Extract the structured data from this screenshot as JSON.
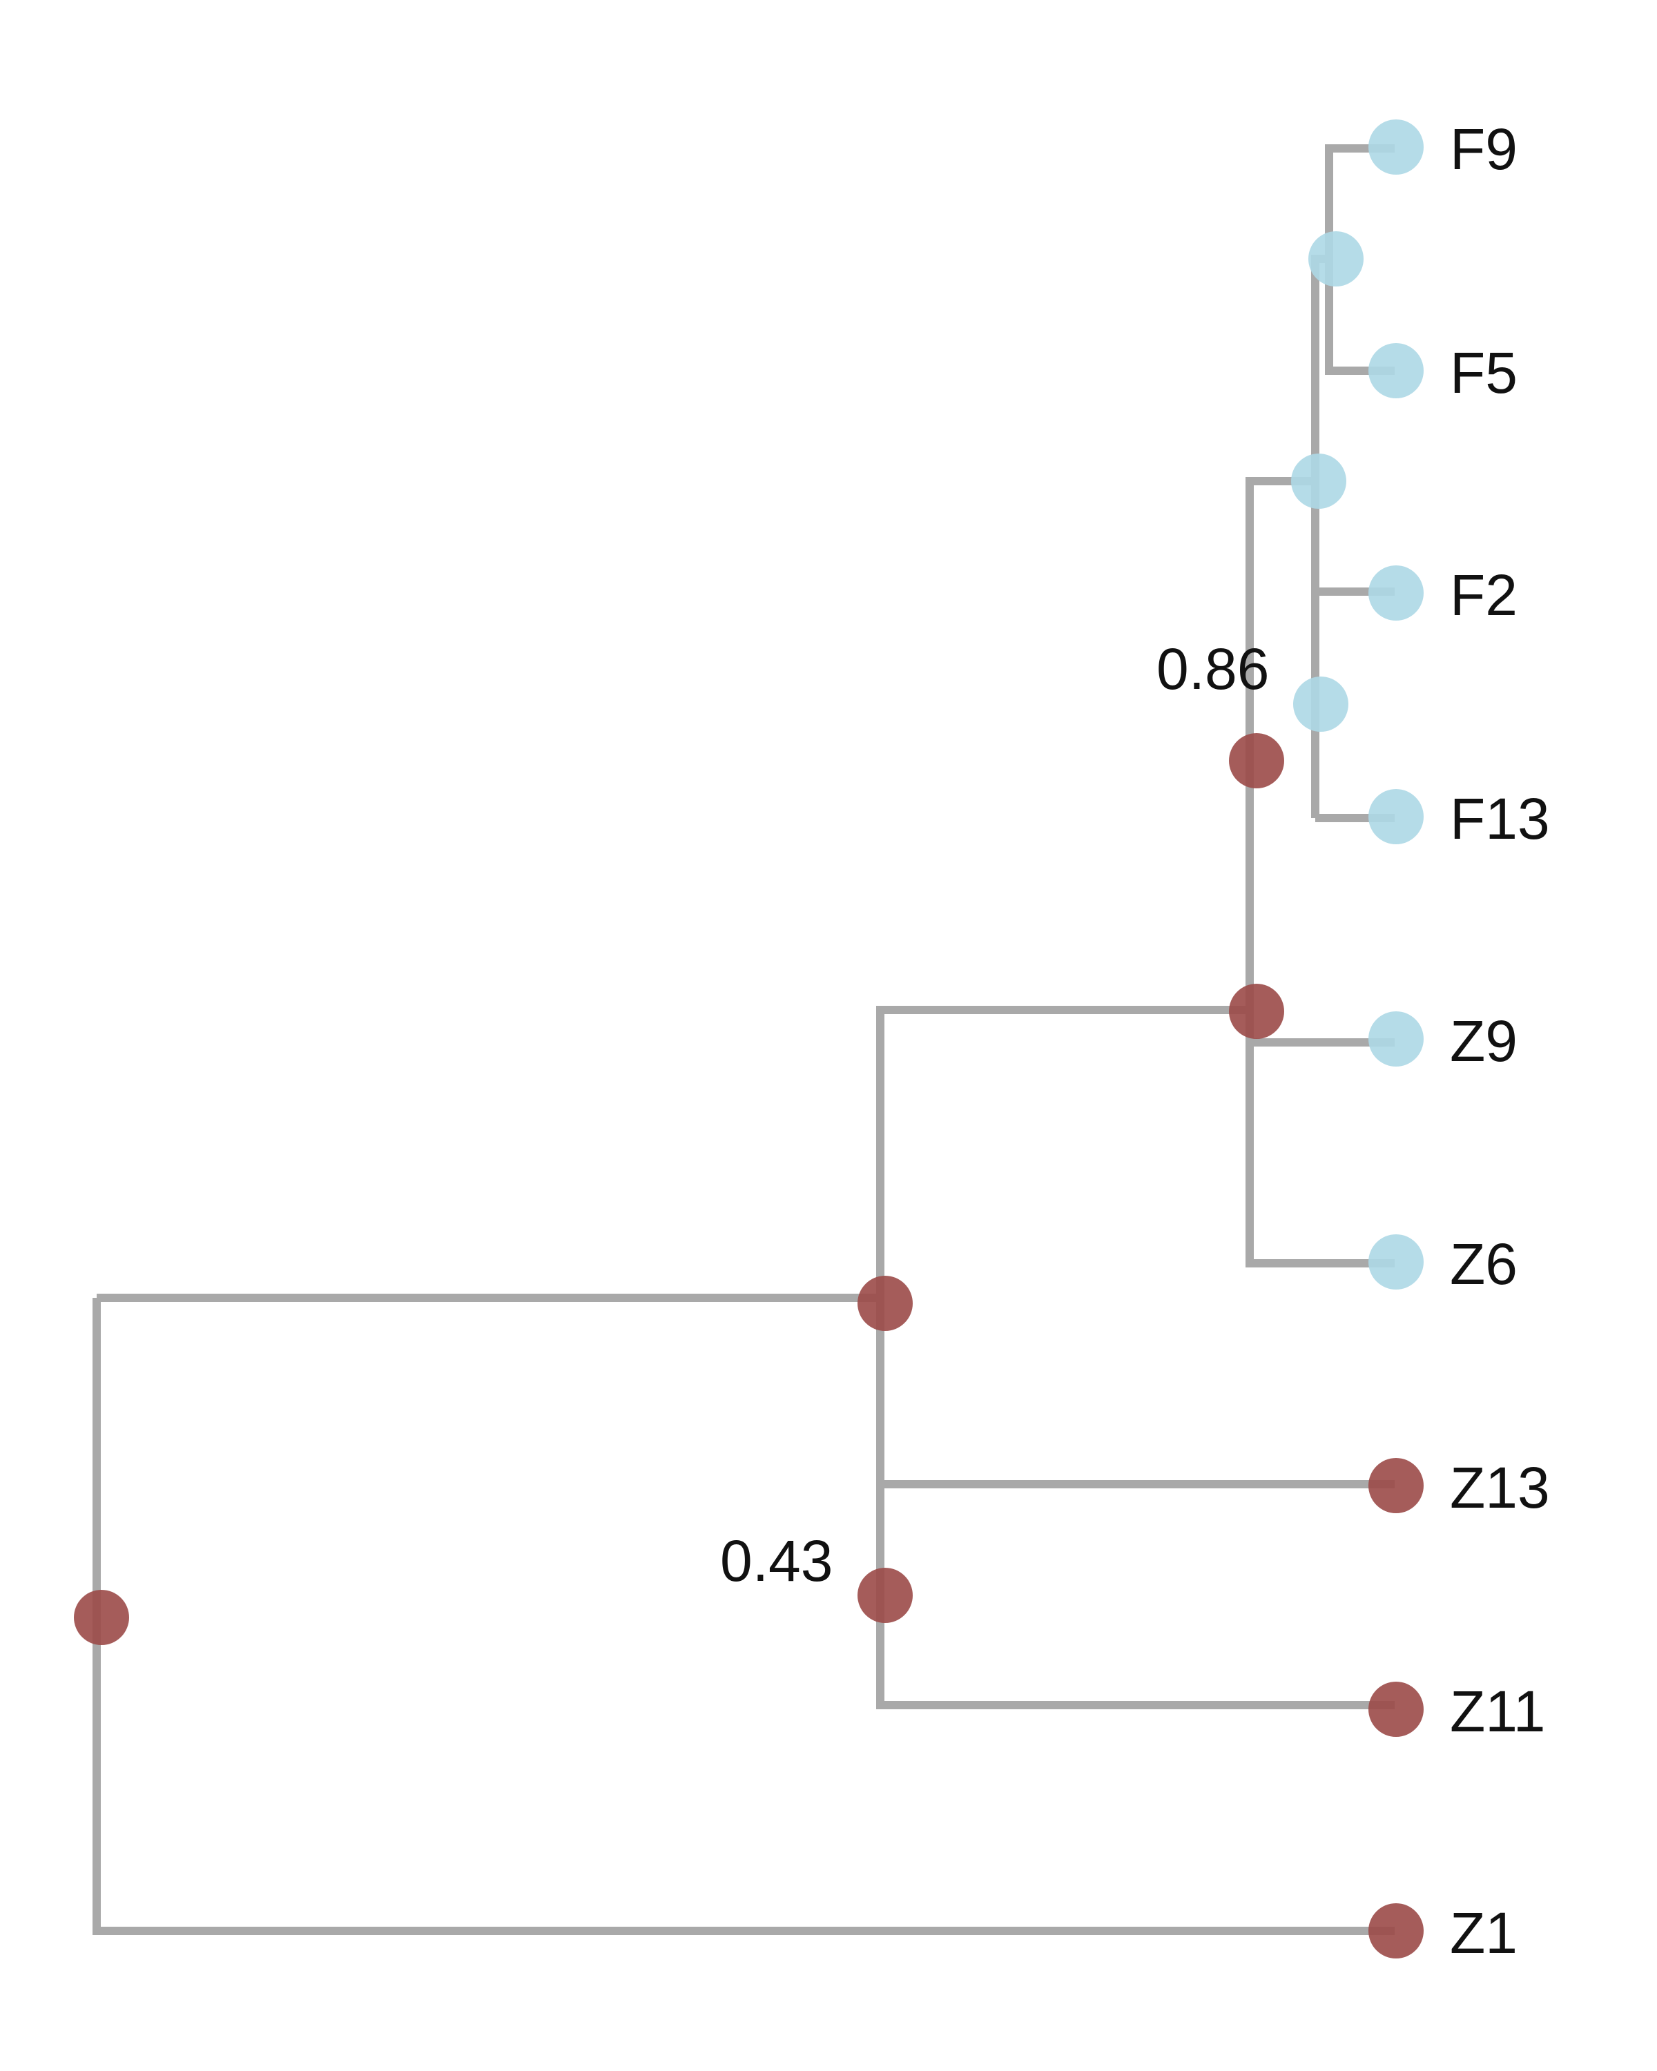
{
  "colors": {
    "branch": "#a9a9a9",
    "cluster_a": "#add8e6",
    "cluster_b": "#9b4a48",
    "text": "#111111"
  },
  "tips": [
    {
      "id": "F9",
      "label": "F9",
      "color": "cluster_a"
    },
    {
      "id": "F5",
      "label": "F5",
      "color": "cluster_a"
    },
    {
      "id": "F2",
      "label": "F2",
      "color": "cluster_a"
    },
    {
      "id": "F13",
      "label": "F13",
      "color": "cluster_a"
    },
    {
      "id": "Z9",
      "label": "Z9",
      "color": "cluster_a"
    },
    {
      "id": "Z6",
      "label": "Z6",
      "color": "cluster_a"
    },
    {
      "id": "Z13",
      "label": "Z13",
      "color": "cluster_b"
    },
    {
      "id": "Z11",
      "label": "Z11",
      "color": "cluster_b"
    },
    {
      "id": "Z1",
      "label": "Z1",
      "color": "cluster_b"
    }
  ],
  "support_labels": [
    {
      "id": "s086",
      "text": "0.86"
    },
    {
      "id": "s043",
      "text": "0.43"
    }
  ]
}
